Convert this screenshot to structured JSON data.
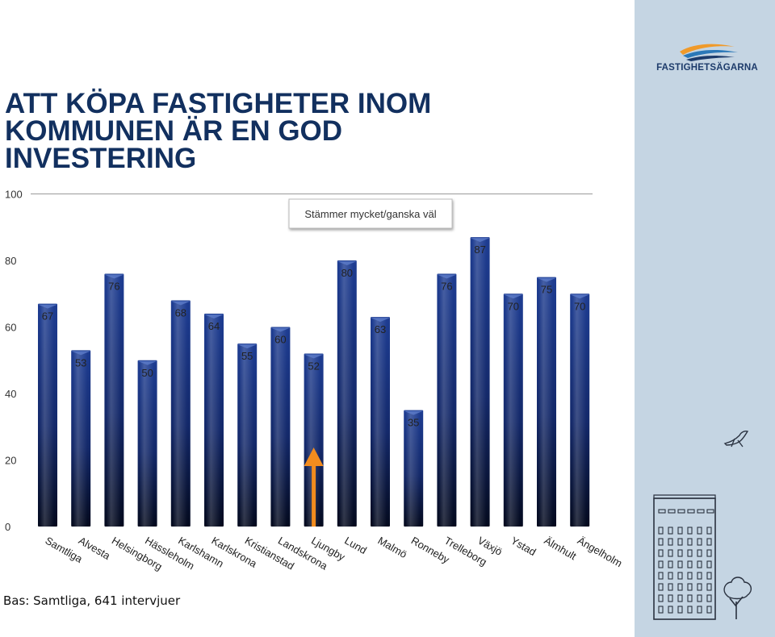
{
  "title_lines": [
    "ATT KÖPA FASTIGHETER INOM",
    "KOMMUNEN ÄR EN GOD",
    "INVESTERING"
  ],
  "logo_text": "FASTIGHETSÄGARNA",
  "footnote": "Bas: Samtliga, 641 intervjuer",
  "colors": {
    "bar": "#1a3582",
    "bar_dark": "#050d24",
    "arrow": "#f28c1e",
    "panel": "#c5d5e3",
    "title": "#12305f"
  },
  "icons": {
    "logo": "wave-logo-icon",
    "bird": "bird-icon",
    "building": "building-tree-icon"
  },
  "chart_data": {
    "type": "bar",
    "categories": [
      "Samtliga",
      "Alvesta",
      "Helsingborg",
      "Hässleholm",
      "Karlshamn",
      "Karlskrona",
      "Kristianstad",
      "Landskrona",
      "Ljungby",
      "Lund",
      "Malmö",
      "Ronneby",
      "Trelleborg",
      "Växjö",
      "Ystad",
      "Älmhult",
      "Ängelholm"
    ],
    "values": [
      67,
      53,
      76,
      50,
      68,
      64,
      55,
      60,
      52,
      80,
      63,
      35,
      76,
      87,
      70,
      75,
      70
    ],
    "legend": "Stämmer mycket/ganska väl",
    "yticks": [
      0,
      20,
      40,
      60,
      80,
      100
    ],
    "ylim": [
      0,
      100
    ],
    "highlight": {
      "category": "Ljungby",
      "marker": "up-arrow"
    },
    "grid": false,
    "title": "",
    "xlabel": "",
    "ylabel": ""
  }
}
